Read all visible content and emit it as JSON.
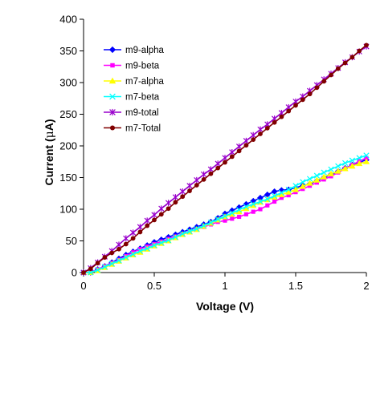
{
  "chart_data": {
    "type": "line",
    "title": "",
    "xlabel": "Voltage (V)",
    "ylabel_parts": [
      "Current (",
      "μ",
      "A)"
    ],
    "xlim": [
      0,
      2
    ],
    "ylim": [
      0,
      400
    ],
    "xticks": [
      0,
      0.5,
      1,
      1.5,
      2
    ],
    "xtick_labels": [
      "0",
      "0.5",
      "1",
      "1.5",
      "2"
    ],
    "yticks": [
      0,
      50,
      100,
      150,
      200,
      250,
      300,
      350,
      400
    ],
    "ytick_labels": [
      "0",
      "50",
      "100",
      "150",
      "200",
      "250",
      "300",
      "350",
      "400"
    ],
    "grid": false,
    "legend_position": "top-left",
    "x": [
      0,
      0.05,
      0.1,
      0.15,
      0.2,
      0.25,
      0.3,
      0.35,
      0.4,
      0.45,
      0.5,
      0.55,
      0.6,
      0.65,
      0.7,
      0.75,
      0.8,
      0.85,
      0.9,
      0.95,
      1.0,
      1.05,
      1.1,
      1.15,
      1.2,
      1.25,
      1.3,
      1.35,
      1.4,
      1.45,
      1.5,
      1.55,
      1.6,
      1.65,
      1.7,
      1.75,
      1.8,
      1.85,
      1.9,
      1.95,
      2.0
    ],
    "series": [
      {
        "name": "m9-alpha",
        "color": "#0000FF",
        "marker": "diamond",
        "values": [
          0,
          0,
          5,
          10,
          16,
          22,
          28,
          33,
          38,
          43,
          48,
          52,
          56,
          60,
          64,
          68,
          72,
          76,
          80,
          86,
          93,
          98,
          103,
          108,
          113,
          118,
          123,
          128,
          130,
          131,
          134,
          137,
          140,
          145,
          150,
          155,
          160,
          165,
          170,
          174,
          178
        ]
      },
      {
        "name": "m9-beta",
        "color": "#FF00FF",
        "marker": "square",
        "values": [
          0,
          0,
          5,
          10,
          15,
          20,
          26,
          32,
          37,
          41,
          45,
          49,
          53,
          57,
          61,
          64,
          68,
          72,
          76,
          80,
          82,
          85,
          88,
          92,
          96,
          100,
          106,
          112,
          118,
          122,
          127,
          132,
          137,
          142,
          147,
          152,
          158,
          164,
          170,
          176,
          181
        ]
      },
      {
        "name": "m7-alpha",
        "color": "#FFFF00",
        "marker": "triangle",
        "values": [
          0,
          0,
          3,
          8,
          13,
          18,
          23,
          28,
          32,
          37,
          42,
          46,
          50,
          55,
          60,
          64,
          68,
          73,
          78,
          83,
          88,
          92,
          96,
          101,
          106,
          111,
          115,
          119,
          123,
          127,
          131,
          136,
          141,
          146,
          151,
          156,
          160,
          164,
          168,
          172,
          175
        ]
      },
      {
        "name": "m7-beta",
        "color": "#00FFFF",
        "marker": "x",
        "values": [
          0,
          0,
          4,
          9,
          14,
          19,
          24,
          29,
          34,
          38,
          43,
          47,
          51,
          56,
          61,
          65,
          69,
          74,
          79,
          84,
          89,
          94,
          99,
          104,
          108,
          112,
          116,
          121,
          126,
          131,
          137,
          143,
          148,
          153,
          158,
          163,
          168,
          173,
          177,
          181,
          185
        ]
      },
      {
        "name": "m9-total",
        "color": "#9900CC",
        "marker": "star",
        "values": [
          0,
          7,
          16,
          25,
          34,
          44,
          54,
          63,
          72,
          82,
          91,
          101,
          110,
          119,
          128,
          137,
          146,
          155,
          163,
          172,
          181,
          190,
          199,
          208,
          217,
          226,
          234,
          243,
          252,
          261,
          270,
          278,
          287,
          296,
          305,
          314,
          323,
          332,
          340,
          349,
          357
        ]
      },
      {
        "name": "m7-Total",
        "color": "#800000",
        "marker": "circle",
        "values": [
          0,
          6,
          15,
          24,
          31,
          37,
          45,
          54,
          64,
          74,
          83,
          92,
          101,
          111,
          120,
          129,
          138,
          147,
          156,
          165,
          174,
          183,
          192,
          201,
          210,
          219,
          228,
          237,
          246,
          255,
          264,
          273,
          282,
          292,
          302,
          312,
          322,
          331,
          340,
          350,
          359
        ]
      }
    ]
  }
}
